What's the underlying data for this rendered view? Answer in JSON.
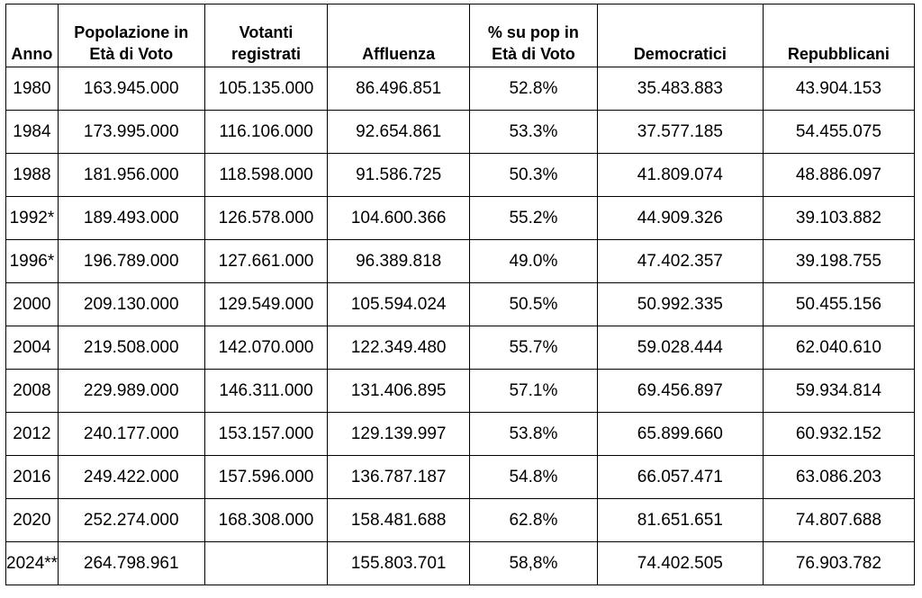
{
  "table": {
    "headers": [
      [
        "Anno"
      ],
      [
        "Popolazione in",
        "Età di Voto"
      ],
      [
        "Votanti",
        "registrati"
      ],
      [
        "Affluenza"
      ],
      [
        "% su pop in",
        "Età di Voto"
      ],
      [
        "Democratici"
      ],
      [
        "Repubblicani"
      ]
    ],
    "rows": [
      [
        "1980",
        "163.945.000",
        "105.135.000",
        "86.496.851",
        "52.8%",
        "35.483.883",
        "43.904.153"
      ],
      [
        "1984",
        "173.995.000",
        "116.106.000",
        "92.654.861",
        "53.3%",
        "37.577.185",
        "54.455.075"
      ],
      [
        "1988",
        "181.956.000",
        "118.598.000",
        "91.586.725",
        "50.3%",
        "41.809.074",
        "48.886.097"
      ],
      [
        "1992*",
        "189.493.000",
        "126.578.000",
        "104.600.366",
        "55.2%",
        "44.909.326",
        "39.103.882"
      ],
      [
        "1996*",
        "196.789.000",
        "127.661.000",
        "96.389.818",
        "49.0%",
        "47.402.357",
        "39.198.755"
      ],
      [
        "2000",
        "209.130.000",
        "129.549.000",
        "105.594.024",
        "50.5%",
        "50.992.335",
        "50.455.156"
      ],
      [
        "2004",
        "219.508.000",
        "142.070.000",
        "122.349.480",
        "55.7%",
        "59.028.444",
        "62.040.610"
      ],
      [
        "2008",
        "229.989.000",
        "146.311.000",
        "131.406.895",
        "57.1%",
        "69.456.897",
        "59.934.814"
      ],
      [
        "2012",
        "240.177.000",
        "153.157.000",
        "129.139.997",
        "53.8%",
        "65.899.660",
        "60.932.152"
      ],
      [
        "2016",
        "249.422.000",
        "157.596.000",
        "136.787.187",
        "54.8%",
        "66.057.471",
        "63.086.203"
      ],
      [
        "2020",
        "252.274.000",
        "168.308.000",
        "158.481.688",
        "62.8%",
        "81.651.651",
        "74.807.688"
      ],
      [
        "2024**",
        "264.798.961",
        "",
        "155.803.701",
        "58,8%",
        "74.402.505",
        "76.903.782"
      ]
    ]
  }
}
